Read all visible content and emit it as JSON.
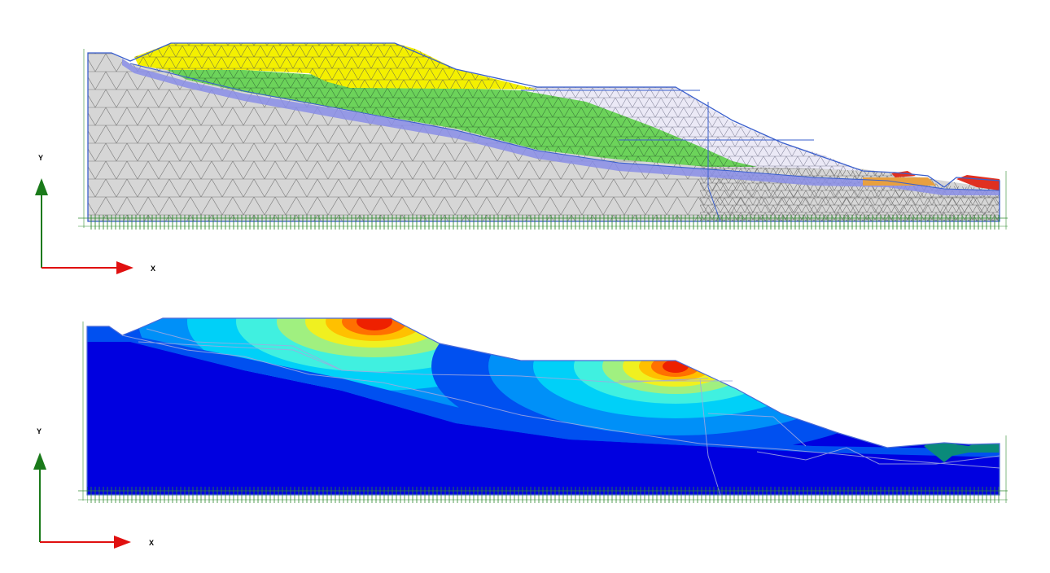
{
  "panels": [
    {
      "id": "mesh",
      "axis": {
        "y_label": "Y",
        "x_label": "X"
      }
    },
    {
      "id": "contour",
      "axis": {
        "y_label": "Y",
        "x_label": "X"
      }
    }
  ],
  "colors": {
    "axis_y": "#1a7a1a",
    "axis_x": "#e01010",
    "boundary": "#3a5fcd",
    "mesh_line": "#6b6b6b",
    "fill_base": "#d6d6d6",
    "fill_top_layer": "#f4f000",
    "fill_mid_layer": "#6cd35a",
    "fill_weak_layer": "#8a8ee8",
    "fill_light_zone": "#e4e2f2",
    "fill_orange": "#e8a040",
    "fill_red": "#e03020",
    "fixity_green": "#2f8a2f",
    "contour_scale": [
      "#0000e0",
      "#0050f0",
      "#0090f8",
      "#00d0f8",
      "#40f0e0",
      "#a0f080",
      "#f0f020",
      "#ffc000",
      "#ff7000",
      "#ee2000"
    ],
    "teal": "#0a8a7a"
  }
}
